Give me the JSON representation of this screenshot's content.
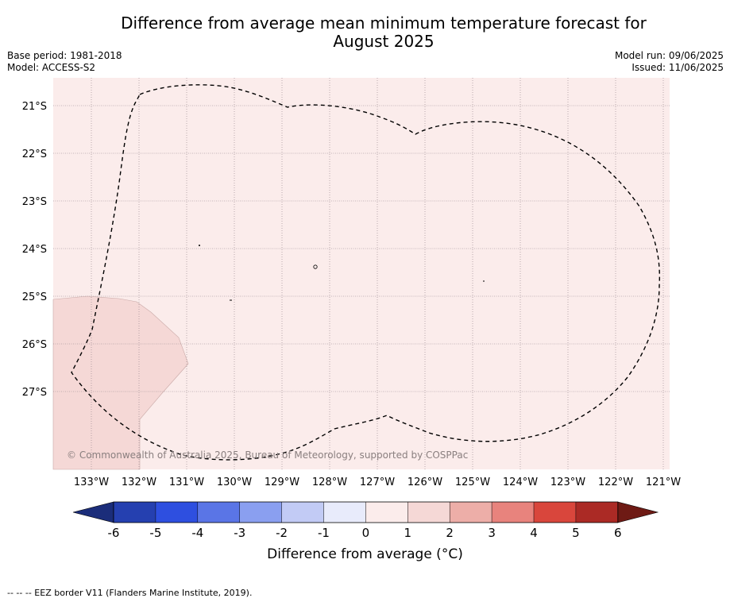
{
  "title": {
    "line1": "Difference from average mean minimum temperature forecast for",
    "line2": "August 2025"
  },
  "meta_left": {
    "base_period": "Base period: 1981-2018",
    "model": "Model: ACCESS-S2"
  },
  "meta_right": {
    "model_run": "Model run: 09/06/2025",
    "issued": "Issued: 11/06/2025"
  },
  "map": {
    "background_color": "#fbeceb",
    "anomaly_patch_color": "#f5d8d6",
    "lat_labels": [
      "21°S",
      "22°S",
      "23°S",
      "24°S",
      "25°S",
      "26°S",
      "27°S"
    ],
    "lon_labels": [
      "133°W",
      "132°W",
      "131°W",
      "130°W",
      "129°W",
      "128°W",
      "127°W",
      "126°W",
      "125°W",
      "124°W",
      "123°W",
      "122°W",
      "121°W"
    ],
    "copyright": "© Commonwealth of Australia 2025, Bureau of Meteorology, supported by COSPPac",
    "eez_border_style": "dashed"
  },
  "colorbar": {
    "ticks": [
      "-6",
      "-5",
      "-4",
      "-3",
      "-2",
      "-1",
      "0",
      "1",
      "2",
      "3",
      "4",
      "5",
      "6"
    ],
    "colors": [
      "#1b2d7a",
      "#2540b0",
      "#2e4fe0",
      "#5a75e6",
      "#8a9ff0",
      "#c2cbf5",
      "#e8ebfb",
      "#fbeceb",
      "#f5d8d6",
      "#edaea8",
      "#e8837d",
      "#d9463c",
      "#ab2a25",
      "#6e1a14"
    ],
    "label": "Difference from average (°C)",
    "label_prefix": "Difference from average (",
    "label_unit": "°C",
    "label_suffix": ")"
  },
  "footnote": "--  --  -- EEZ border V11 (Flanders Marine Institute, 2019)."
}
